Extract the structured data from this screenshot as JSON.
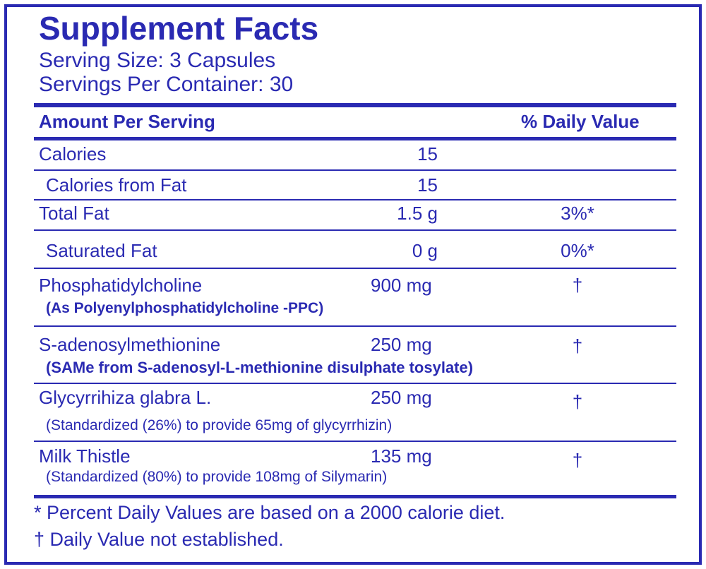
{
  "header": {
    "title": "Supplement Facts",
    "serving_size": "Serving Size: 3 Capsules",
    "servings_per_container": "Servings Per Container: 30"
  },
  "table": {
    "columns": [
      "Amount Per Serving",
      "% Daily Value"
    ],
    "rows": [
      {
        "name": "Calories",
        "amount": "15"
      },
      {
        "name": "Calories from Fat",
        "amount": "15"
      },
      {
        "name": "Total Fat",
        "amount": "1.5 g",
        "dv": "3%*"
      },
      {
        "name": "Saturated Fat",
        "amount": "0 g",
        "dv": "0%*"
      },
      {
        "name": "Phosphatidylcholine",
        "amount": "900 mg",
        "dv": "†",
        "note": "(As Polyenylphosphatidylcholine -PPC)"
      },
      {
        "name": "S-adenosylmethionine",
        "amount": "250 mg",
        "dv": "†",
        "note": "(SAMe from S-adenosyl-L-methionine disulphate tosylate)"
      },
      {
        "name": "Glycyrrihiza glabra L.",
        "amount": "250 mg",
        "dv": "†",
        "note": "(Standardized (26%) to provide 65mg of glycyrrhizin)"
      },
      {
        "name": "Milk Thistle",
        "amount": "135 mg",
        "dv": "†",
        "note": "(Standardized (80%) to provide 108mg of Silymarin)"
      }
    ]
  },
  "footnotes": [
    "* Percent Daily Values are based on a 2000 calorie diet.",
    "† Daily Value not established."
  ]
}
